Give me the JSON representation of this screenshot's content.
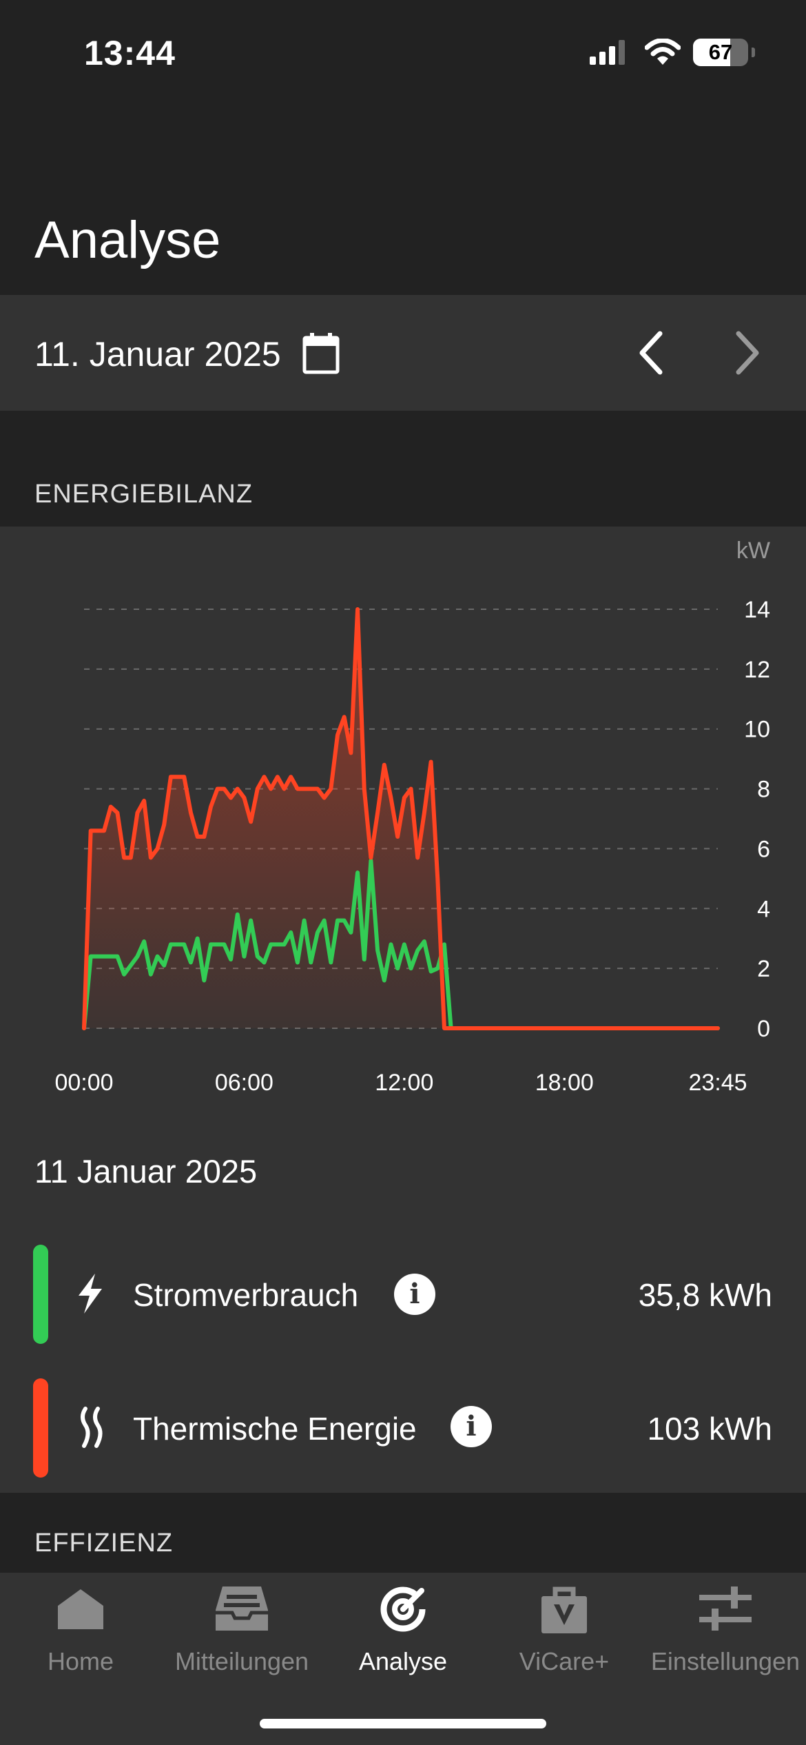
{
  "status_bar": {
    "time": "13:44",
    "battery_level": "67",
    "battery_fraction": 0.67,
    "icons": [
      "signal-icon",
      "wifi-icon",
      "battery-icon"
    ]
  },
  "page": {
    "title": "Analyse"
  },
  "date_bar": {
    "date_label": "11. Januar 2025",
    "calendar_icon": "calendar-icon",
    "prev_icon": "chevron-left-icon",
    "next_icon": "chevron-right-icon"
  },
  "sections": {
    "energie": "ENERGIEBILANZ",
    "effizienz": "EFFIZIENZ"
  },
  "chart_data": {
    "type": "area",
    "ylabel": "kW",
    "ylim": [
      0,
      14
    ],
    "y_ticks": [
      "0",
      "2",
      "4",
      "6",
      "8",
      "10",
      "12",
      "14"
    ],
    "x_tick_labels": [
      "00:00",
      "06:00",
      "12:00",
      "18:00",
      "23:45"
    ],
    "x_tick_hours": [
      0,
      6,
      12,
      18,
      23.75
    ],
    "grid": true,
    "series": [
      {
        "name": "Thermische Energie",
        "color": "#ff4422",
        "x": [
          0,
          0.25,
          0.5,
          0.75,
          1,
          1.25,
          1.5,
          1.75,
          2,
          2.25,
          2.5,
          2.75,
          3,
          3.25,
          3.5,
          3.75,
          4,
          4.25,
          4.5,
          4.75,
          5,
          5.25,
          5.5,
          5.75,
          6,
          6.25,
          6.5,
          6.75,
          7,
          7.25,
          7.5,
          7.75,
          8,
          8.25,
          8.5,
          8.75,
          9,
          9.25,
          9.5,
          9.75,
          10,
          10.25,
          10.5,
          10.75,
          11,
          11.25,
          11.5,
          11.75,
          12,
          12.25,
          12.5,
          12.75,
          13,
          13.25,
          13.5,
          13.75,
          23.75
        ],
        "y": [
          0,
          6.6,
          6.6,
          6.6,
          7.4,
          7.2,
          5.7,
          5.7,
          7.2,
          7.6,
          5.7,
          6.0,
          6.8,
          8.4,
          8.4,
          8.4,
          7.2,
          6.4,
          6.4,
          7.4,
          8.0,
          8.0,
          7.7,
          8.0,
          7.7,
          6.9,
          8.0,
          8.4,
          8.0,
          8.4,
          8.0,
          8.4,
          8.0,
          8.0,
          8.0,
          8.0,
          7.7,
          8.0,
          9.8,
          10.4,
          9.2,
          14.0,
          8.0,
          5.7,
          7.2,
          8.8,
          7.7,
          6.4,
          7.7,
          8.0,
          5.7,
          7.2,
          8.9,
          5.0,
          0.0,
          0.0,
          0.0
        ]
      },
      {
        "name": "Stromverbrauch",
        "color": "#33cc55",
        "x": [
          0,
          0.25,
          0.5,
          0.75,
          1,
          1.25,
          1.5,
          1.75,
          2,
          2.25,
          2.5,
          2.75,
          3,
          3.25,
          3.5,
          3.75,
          4,
          4.25,
          4.5,
          4.75,
          5,
          5.25,
          5.5,
          5.75,
          6,
          6.25,
          6.5,
          6.75,
          7,
          7.25,
          7.5,
          7.75,
          8,
          8.25,
          8.5,
          8.75,
          9,
          9.25,
          9.5,
          9.75,
          10,
          10.25,
          10.5,
          10.75,
          11,
          11.25,
          11.5,
          11.75,
          12,
          12.25,
          12.5,
          12.75,
          13,
          13.25,
          13.5,
          13.75,
          23.75
        ],
        "y": [
          0,
          2.4,
          2.4,
          2.4,
          2.4,
          2.4,
          1.8,
          2.1,
          2.4,
          2.9,
          1.8,
          2.4,
          2.1,
          2.8,
          2.8,
          2.8,
          2.2,
          3.0,
          1.6,
          2.8,
          2.8,
          2.8,
          2.3,
          3.8,
          2.4,
          3.6,
          2.4,
          2.2,
          2.8,
          2.8,
          2.8,
          3.2,
          2.2,
          3.6,
          2.2,
          3.2,
          3.6,
          2.2,
          3.6,
          3.6,
          3.2,
          5.2,
          2.3,
          5.6,
          2.6,
          1.6,
          2.8,
          2.0,
          2.8,
          2.0,
          2.6,
          2.9,
          1.9,
          2.0,
          2.8,
          0.0,
          0.0
        ]
      }
    ]
  },
  "summary": {
    "date": "11 Januar 2025",
    "items": [
      {
        "label": "Stromverbrauch",
        "value": "35,8 kWh",
        "color": "#33cc55",
        "icon": "lightning-bolt-icon"
      },
      {
        "label": "Thermische Energie",
        "value": "103 kWh",
        "color": "#ff4422",
        "icon": "heat-waves-icon"
      }
    ],
    "info_glyph": "i"
  },
  "tab_bar": {
    "tabs": [
      {
        "label": "Home",
        "icon": "home-icon",
        "active": false
      },
      {
        "label": "Mitteilungen",
        "icon": "inbox-icon",
        "active": false
      },
      {
        "label": "Analyse",
        "icon": "analysis-icon",
        "active": true
      },
      {
        "label": "ViCare+",
        "icon": "shopping-bag-icon",
        "active": false
      },
      {
        "label": "Einstellungen",
        "icon": "sliders-icon",
        "active": false
      }
    ]
  }
}
